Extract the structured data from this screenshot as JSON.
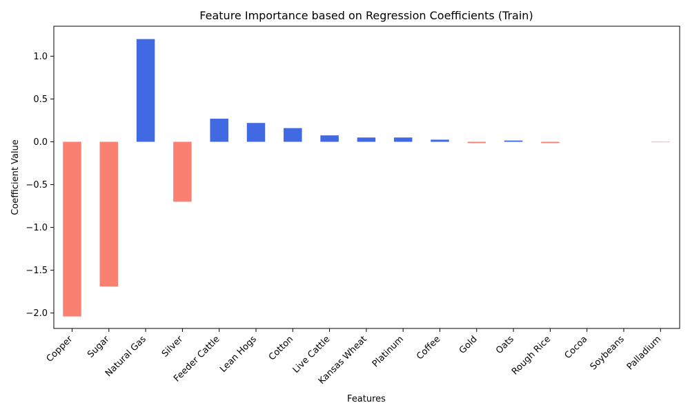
{
  "chart_data": {
    "type": "bar",
    "title": "Feature Importance based on Regression Coefficients (Train)",
    "xlabel": "Features",
    "ylabel": "Coefficient Value",
    "categories": [
      "Copper",
      "Sugar",
      "Natural Gas",
      "Silver",
      "Feeder Cattle",
      "Lean Hogs",
      "Cotton",
      "Live Cattle",
      "Kansas Wheat",
      "Platinum",
      "Coffee",
      "Gold",
      "Oats",
      "Rough Rice",
      "Cocoa",
      "Soybeans",
      "Palladium"
    ],
    "values": [
      -2.04,
      -1.69,
      1.2,
      -0.7,
      0.27,
      0.22,
      0.16,
      0.075,
      0.05,
      0.05,
      0.025,
      -0.015,
      0.015,
      -0.015,
      0.0,
      0.0,
      -0.005
    ],
    "ylim": [
      -2.18,
      1.35
    ],
    "yticks": [
      -2.0,
      -1.5,
      -1.0,
      -0.5,
      0.0,
      0.5,
      1.0
    ],
    "ytick_labels": [
      "−2.0",
      "−1.5",
      "−1.0",
      "−0.5",
      "0.0",
      "0.5",
      "1.0"
    ],
    "grid": false,
    "colors": {
      "positive": "#4169E1",
      "negative": "#FA8072",
      "axis": "#000000"
    }
  }
}
